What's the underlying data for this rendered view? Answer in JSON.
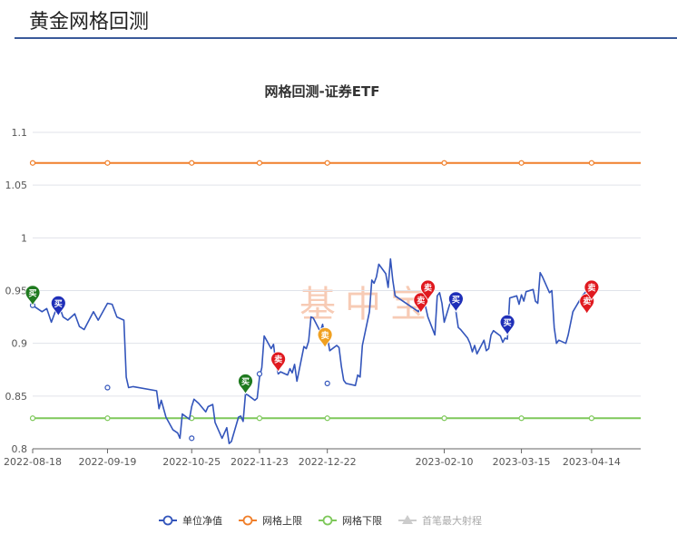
{
  "page": {
    "title": "黄金网格回测"
  },
  "watermark": "基中宝",
  "colors": {
    "nav": "#3355bb",
    "upper": "#f07f2a",
    "lower": "#7ec85a",
    "first_buy": "#cccccc",
    "buy_blue": "#1f2fb8",
    "buy_green": "#1f7a1f",
    "sell_red": "#e0191f",
    "sell_orange": "#f0a020",
    "grid": "#e0e3ea"
  },
  "chart_data": {
    "type": "line",
    "title": "网格回测-证券ETF",
    "ylim": [
      0.8,
      1.1
    ],
    "yticks": [
      0.8,
      0.85,
      0.9,
      0.95,
      1,
      1.05,
      1.1
    ],
    "ytick_labels": [
      "0.8",
      "0.85",
      "0.9",
      "0.95",
      "1",
      "1.05",
      "1.1"
    ],
    "xlim": [
      "2022-08-18",
      "2023-05-05"
    ],
    "xticks": [
      "2022-08-18",
      "2022-09-19",
      "2022-10-25",
      "2022-11-23",
      "2022-12-22",
      "2023-02-10",
      "2023-03-15",
      "2023-04-14"
    ],
    "grid": true,
    "legend_position": "bottom",
    "series": [
      {
        "name": "单位净值",
        "color": "#3355bb",
        "points": [
          [
            "2022-08-18",
            0.936
          ],
          [
            "2022-08-22",
            0.93
          ],
          [
            "2022-08-24",
            0.933
          ],
          [
            "2022-08-26",
            0.92
          ],
          [
            "2022-08-29",
            0.938
          ],
          [
            "2022-08-31",
            0.925
          ],
          [
            "2022-09-02",
            0.922
          ],
          [
            "2022-09-05",
            0.928
          ],
          [
            "2022-09-07",
            0.916
          ],
          [
            "2022-09-09",
            0.913
          ],
          [
            "2022-09-13",
            0.93
          ],
          [
            "2022-09-15",
            0.922
          ],
          [
            "2022-09-19",
            0.938
          ],
          [
            "2022-09-21",
            0.937
          ],
          [
            "2022-09-23",
            0.925
          ],
          [
            "2022-09-26",
            0.922
          ],
          [
            "2022-09-27",
            0.868
          ],
          [
            "2022-09-28",
            0.858
          ],
          [
            "2022-09-30",
            0.859
          ],
          [
            "2022-10-10",
            0.855
          ],
          [
            "2022-10-11",
            0.838
          ],
          [
            "2022-10-12",
            0.846
          ],
          [
            "2022-10-14",
            0.83
          ],
          [
            "2022-10-17",
            0.818
          ],
          [
            "2022-10-19",
            0.815
          ],
          [
            "2022-10-20",
            0.81
          ],
          [
            "2022-10-21",
            0.833
          ],
          [
            "2022-10-24",
            0.828
          ],
          [
            "2022-10-25",
            0.84
          ],
          [
            "2022-10-26",
            0.847
          ],
          [
            "2022-10-28",
            0.843
          ],
          [
            "2022-10-31",
            0.835
          ],
          [
            "2022-11-01",
            0.84
          ],
          [
            "2022-11-03",
            0.842
          ],
          [
            "2022-11-04",
            0.825
          ],
          [
            "2022-11-07",
            0.81
          ],
          [
            "2022-11-08",
            0.815
          ],
          [
            "2022-11-09",
            0.82
          ],
          [
            "2022-11-10",
            0.805
          ],
          [
            "2022-11-11",
            0.807
          ],
          [
            "2022-11-14",
            0.83
          ],
          [
            "2022-11-15",
            0.831
          ],
          [
            "2022-11-16",
            0.826
          ],
          [
            "2022-11-17",
            0.852
          ],
          [
            "2022-11-18",
            0.851
          ],
          [
            "2022-11-21",
            0.846
          ],
          [
            "2022-11-22",
            0.848
          ],
          [
            "2022-11-23",
            0.868
          ],
          [
            "2022-11-24",
            0.877
          ],
          [
            "2022-11-25",
            0.907
          ],
          [
            "2022-11-28",
            0.895
          ],
          [
            "2022-11-29",
            0.899
          ],
          [
            "2022-11-30",
            0.881
          ],
          [
            "2022-12-01",
            0.871
          ],
          [
            "2022-12-02",
            0.873
          ],
          [
            "2022-12-05",
            0.87
          ],
          [
            "2022-12-06",
            0.876
          ],
          [
            "2022-12-07",
            0.872
          ],
          [
            "2022-12-08",
            0.88
          ],
          [
            "2022-12-09",
            0.864
          ],
          [
            "2022-12-12",
            0.897
          ],
          [
            "2022-12-13",
            0.895
          ],
          [
            "2022-12-14",
            0.902
          ],
          [
            "2022-12-15",
            0.925
          ],
          [
            "2022-12-16",
            0.924
          ],
          [
            "2022-12-19",
            0.911
          ],
          [
            "2022-12-20",
            0.918
          ],
          [
            "2022-12-21",
            0.905
          ],
          [
            "2022-12-22",
            0.907
          ],
          [
            "2022-12-23",
            0.893
          ],
          [
            "2022-12-26",
            0.898
          ],
          [
            "2022-12-27",
            0.896
          ],
          [
            "2022-12-28",
            0.878
          ],
          [
            "2022-12-29",
            0.865
          ],
          [
            "2022-12-30",
            0.862
          ],
          [
            "2023-01-03",
            0.86
          ],
          [
            "2023-01-04",
            0.87
          ],
          [
            "2023-01-05",
            0.868
          ],
          [
            "2023-01-06",
            0.898
          ],
          [
            "2023-01-09",
            0.93
          ],
          [
            "2023-01-10",
            0.96
          ],
          [
            "2023-01-11",
            0.957
          ],
          [
            "2023-01-12",
            0.963
          ],
          [
            "2023-01-13",
            0.975
          ],
          [
            "2023-01-16",
            0.966
          ],
          [
            "2023-01-17",
            0.953
          ],
          [
            "2023-01-18",
            0.98
          ],
          [
            "2023-01-19",
            0.96
          ],
          [
            "2023-01-20",
            0.945
          ],
          [
            "2023-01-30",
            0.93
          ],
          [
            "2023-01-31",
            0.945
          ],
          [
            "2023-02-01",
            0.941
          ],
          [
            "2023-02-02",
            0.935
          ],
          [
            "2023-02-03",
            0.925
          ],
          [
            "2023-02-06",
            0.908
          ],
          [
            "2023-02-07",
            0.945
          ],
          [
            "2023-02-08",
            0.948
          ],
          [
            "2023-02-09",
            0.938
          ],
          [
            "2023-02-10",
            0.92
          ],
          [
            "2023-02-13",
            0.942
          ],
          [
            "2023-02-14",
            0.945
          ],
          [
            "2023-02-15",
            0.93
          ],
          [
            "2023-02-16",
            0.915
          ],
          [
            "2023-02-17",
            0.913
          ],
          [
            "2023-02-20",
            0.905
          ],
          [
            "2023-02-21",
            0.9
          ],
          [
            "2023-02-22",
            0.892
          ],
          [
            "2023-02-23",
            0.898
          ],
          [
            "2023-02-24",
            0.89
          ],
          [
            "2023-02-27",
            0.903
          ],
          [
            "2023-02-28",
            0.893
          ],
          [
            "2023-03-01",
            0.895
          ],
          [
            "2023-03-02",
            0.908
          ],
          [
            "2023-03-03",
            0.912
          ],
          [
            "2023-03-06",
            0.907
          ],
          [
            "2023-03-07",
            0.901
          ],
          [
            "2023-03-08",
            0.905
          ],
          [
            "2023-03-09",
            0.904
          ],
          [
            "2023-03-10",
            0.943
          ],
          [
            "2023-03-13",
            0.945
          ],
          [
            "2023-03-14",
            0.937
          ],
          [
            "2023-03-15",
            0.946
          ],
          [
            "2023-03-16",
            0.94
          ],
          [
            "2023-03-17",
            0.949
          ],
          [
            "2023-03-20",
            0.951
          ],
          [
            "2023-03-21",
            0.94
          ],
          [
            "2023-03-22",
            0.938
          ],
          [
            "2023-03-23",
            0.967
          ],
          [
            "2023-03-24",
            0.963
          ],
          [
            "2023-03-27",
            0.948
          ],
          [
            "2023-03-28",
            0.95
          ],
          [
            "2023-03-29",
            0.915
          ],
          [
            "2023-03-30",
            0.9
          ],
          [
            "2023-03-31",
            0.903
          ],
          [
            "2023-04-03",
            0.9
          ],
          [
            "2023-04-04",
            0.908
          ],
          [
            "2023-04-06",
            0.93
          ],
          [
            "2023-04-10",
            0.945
          ],
          [
            "2023-04-12",
            0.95
          ],
          [
            "2023-04-14",
            0.951
          ]
        ]
      },
      {
        "name": "网格上限",
        "color": "#f07f2a",
        "value": 1.071
      },
      {
        "name": "网格下限",
        "color": "#7ec85a",
        "value": 0.829
      },
      {
        "name": "首笔最大射程",
        "color": "#cccccc",
        "hidden": true
      }
    ],
    "trade_markers": [
      {
        "label": "买",
        "date": "2022-08-18",
        "value": 0.936,
        "color": "#1f7a1f"
      },
      {
        "label": "买",
        "date": "2022-08-29",
        "value": 0.926,
        "color": "#1f2fb8"
      },
      {
        "label": "买",
        "date": "2022-11-17",
        "value": 0.852,
        "color": "#1f7a1f"
      },
      {
        "label": "卖",
        "date": "2022-12-01",
        "value": 0.873,
        "color": "#e0191f"
      },
      {
        "label": "卖",
        "date": "2022-12-21",
        "value": 0.896,
        "color": "#f0a020"
      },
      {
        "label": "卖",
        "date": "2023-01-31",
        "value": 0.929,
        "color": "#e0191f"
      },
      {
        "label": "卖",
        "date": "2023-02-03",
        "value": 0.941,
        "color": "#e0191f"
      },
      {
        "label": "买",
        "date": "2023-02-15",
        "value": 0.93,
        "color": "#1f2fb8"
      },
      {
        "label": "买",
        "date": "2023-03-09",
        "value": 0.908,
        "color": "#1f2fb8"
      },
      {
        "label": "卖",
        "date": "2023-04-12",
        "value": 0.928,
        "color": "#e0191f"
      },
      {
        "label": "卖",
        "date": "2023-04-14",
        "value": 0.941,
        "color": "#e0191f"
      }
    ],
    "nav_circle_points": [
      [
        "2022-08-18",
        0.936
      ],
      [
        "2022-09-19",
        0.858
      ],
      [
        "2022-10-25",
        0.81
      ],
      [
        "2022-11-23",
        0.871
      ],
      [
        "2022-12-22",
        0.862
      ]
    ]
  }
}
